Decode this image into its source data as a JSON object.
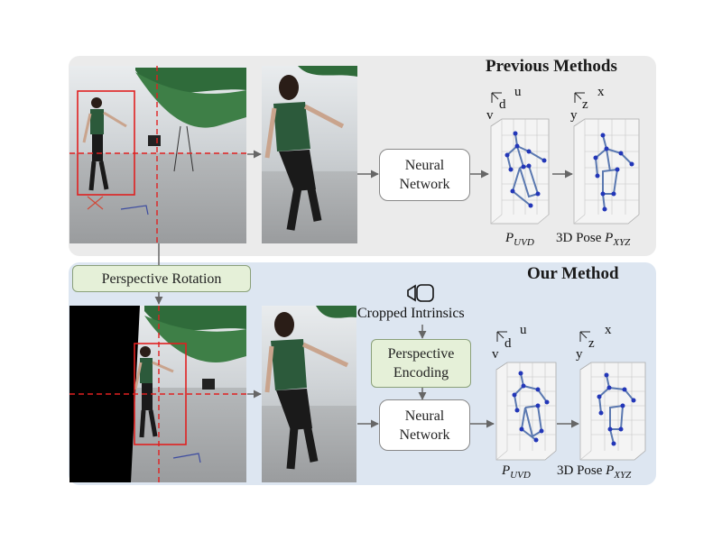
{
  "previous": {
    "title": "Previous Methods",
    "network_line1": "Neural",
    "network_line2": "Network",
    "uvd_axes": {
      "right": "u",
      "depth": "d",
      "down": "v"
    },
    "xyz_axes": {
      "right": "x",
      "depth": "z",
      "down": "y"
    },
    "label_uvd_base": "P",
    "label_uvd_sub": "UVD",
    "label_pose_prefix": "3D Pose ",
    "label_xyz_base": "P",
    "label_xyz_sub": "XYZ"
  },
  "ours": {
    "title": "Our Method",
    "rotation_label": "Perspective Rotation",
    "intrinsics_label": "Cropped Intrinsics",
    "encoding_line1": "Perspective",
    "encoding_line2": "Encoding",
    "network_line1": "Neural",
    "network_line2": "Network",
    "uvd_axes": {
      "right": "u",
      "depth": "d",
      "down": "v"
    },
    "xyz_axes": {
      "right": "x",
      "depth": "z",
      "down": "y"
    },
    "label_uvd_base": "P",
    "label_uvd_sub": "UVD",
    "label_pose_prefix": "3D Pose ",
    "label_xyz_base": "P",
    "label_xyz_sub": "XYZ"
  },
  "icons": [
    "camera-icon"
  ],
  "colors": {
    "prev_panel": "#ebebeb",
    "ours_panel": "#dde6f1",
    "skeleton": "#2236b8",
    "crop_box": "#e02020",
    "green_box": "#e5f0d8"
  }
}
